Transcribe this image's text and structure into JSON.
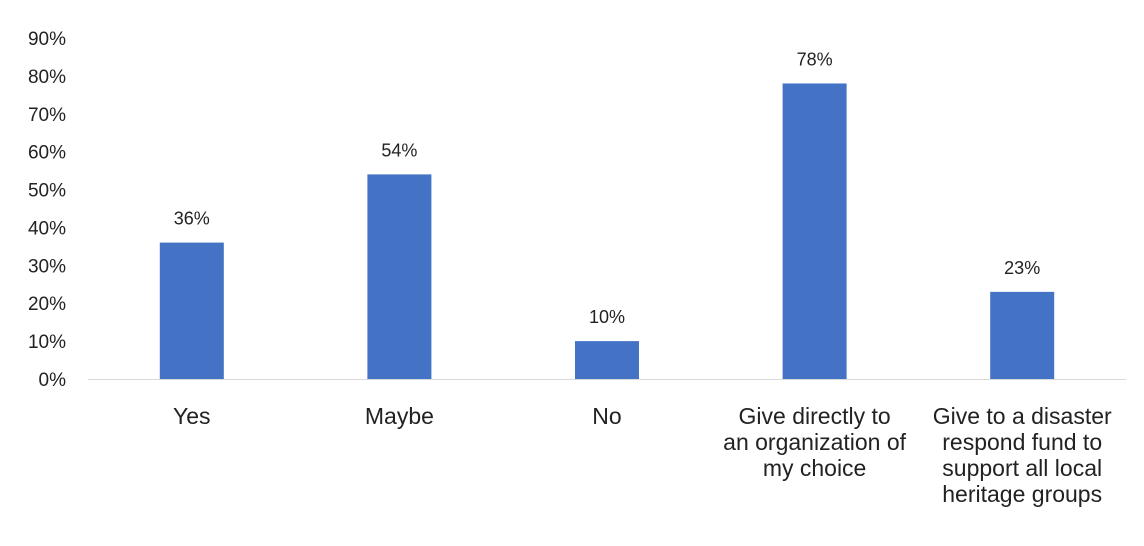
{
  "chart_data": {
    "type": "bar",
    "categories": [
      "Yes",
      "Maybe",
      "No",
      "Give directly to an organization of my choice",
      "Give to a disaster respond fund to support all local heritage groups"
    ],
    "category_lines": [
      [
        "Yes"
      ],
      [
        "Maybe"
      ],
      [
        "No"
      ],
      [
        "Give directly to",
        "an organization of",
        "my choice"
      ],
      [
        "Give to a disaster",
        "respond fund to",
        "support all local",
        "heritage groups"
      ]
    ],
    "values": [
      36,
      54,
      10,
      78,
      23
    ],
    "data_labels": [
      "36%",
      "54%",
      "10%",
      "78%",
      "23%"
    ],
    "y_ticks": [
      "0%",
      "10%",
      "20%",
      "30%",
      "40%",
      "50%",
      "60%",
      "70%",
      "80%",
      "90%"
    ],
    "ylim": [
      0,
      90
    ],
    "grid": false,
    "legend": "none",
    "colors": {
      "bar": "#4472c4",
      "baseline": "#d9d9d9",
      "text": "#222222"
    }
  }
}
